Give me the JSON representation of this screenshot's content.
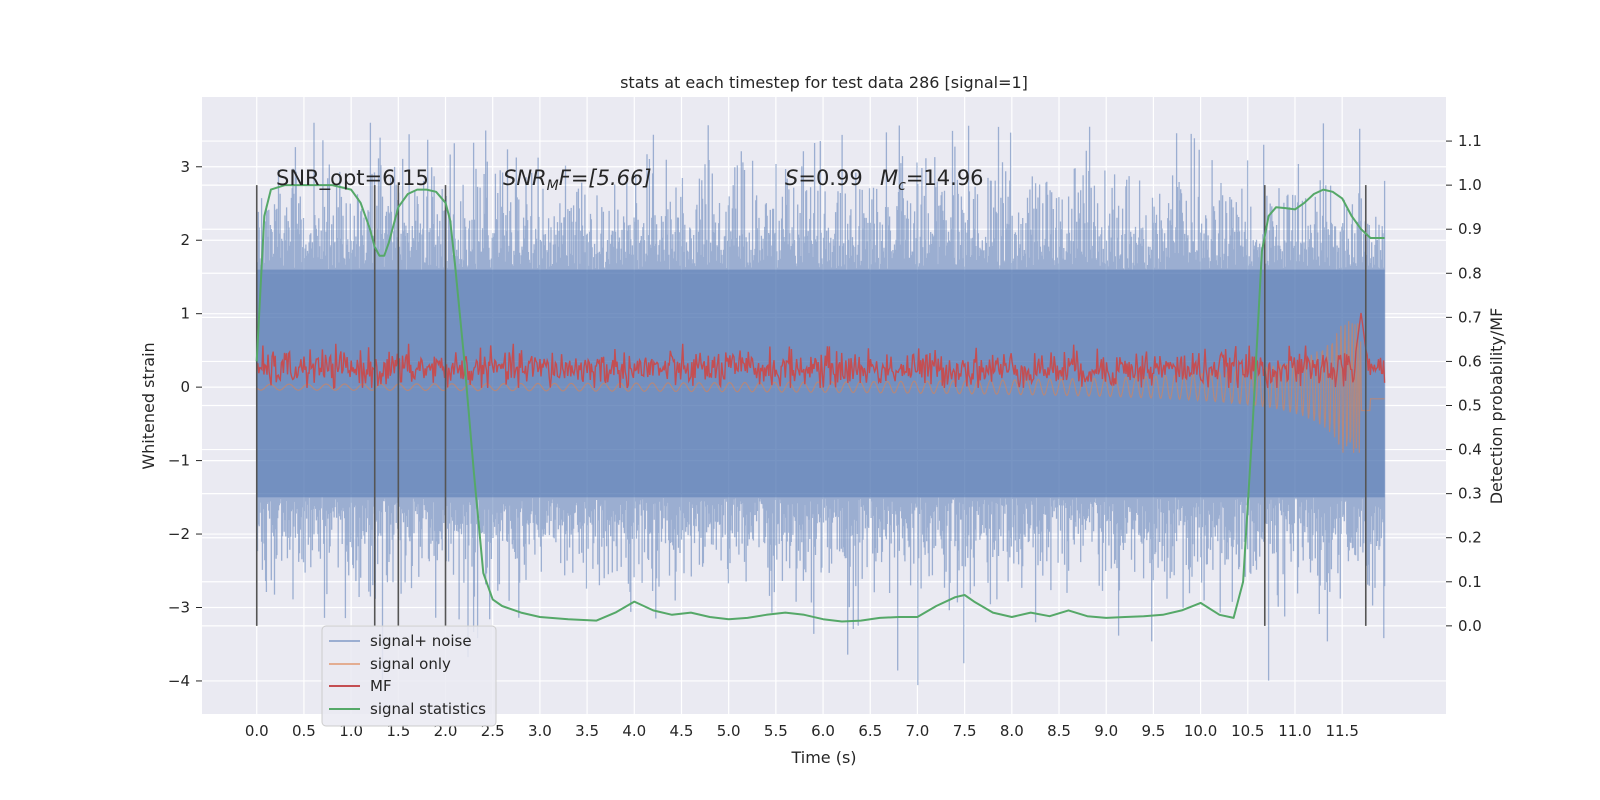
{
  "chart_data": {
    "type": "line",
    "title": "stats at each timestep for test data 286 [signal=1]",
    "xlabel": "Time (s)",
    "ylabel": "Whitened strain",
    "y2label": "Detection probability/MF",
    "xlim": [
      -0.58,
      12.6
    ],
    "ylim": [
      -4.45,
      3.95
    ],
    "y2lim": [
      -0.2,
      1.2
    ],
    "x_ticks": [
      "0.0",
      "0.5",
      "1.0",
      "1.5",
      "2.0",
      "2.5",
      "3.0",
      "3.5",
      "4.0",
      "4.5",
      "5.0",
      "5.5",
      "6.0",
      "6.5",
      "7.0",
      "7.5",
      "8.0",
      "8.5",
      "9.0",
      "9.5",
      "10.0",
      "10.5",
      "11.0",
      "11.5"
    ],
    "y_ticks": [
      "3",
      "2",
      "1",
      "0",
      "−1",
      "−2",
      "−3",
      "−4"
    ],
    "y2_ticks": [
      "1.1",
      "1.0",
      "0.9",
      "0.8",
      "0.7",
      "0.6",
      "0.5",
      "0.4",
      "0.3",
      "0.2",
      "0.1",
      "0.0"
    ],
    "grid": true,
    "legend_position": "lower-left",
    "annotations": {
      "snr_opt": "SNR_opt=6.15",
      "snr_mf_symbol": "SNR",
      "snr_mf_sub": "M",
      "snr_mf_tail": "F=[5.66]",
      "s_symbol": "S",
      "s_value": "=0.99",
      "mc_symbol": "M",
      "mc_sub": "c",
      "mc_value": "=14.96"
    },
    "vertical_markers_s": [
      0.0,
      1.25,
      1.5,
      2.0,
      10.68,
      11.75
    ],
    "series": [
      {
        "name": "signal+ noise",
        "color": "#4c72b0",
        "axis": "left",
        "t_range": [
          0.0,
          11.95
        ],
        "envelope": {
          "p_hi": 1.6,
          "p_lo": -1.5,
          "max": 3.6,
          "min": -4.1
        }
      },
      {
        "name": "signal only",
        "color": "#dd8452",
        "axis": "left",
        "t_range": [
          0.0,
          11.95
        ],
        "envelope": {
          "amp_start": 0.04,
          "amp_end": 0.9,
          "peak_t": 11.7
        }
      },
      {
        "name": "MF",
        "color": "#c44e52",
        "axis": "right",
        "t_range": [
          0.0,
          11.95
        ],
        "level_range": [
          0.545,
          0.63
        ],
        "spike": {
          "t": 11.7,
          "value": 0.71
        }
      },
      {
        "name": "signal statistics",
        "color": "#55a868",
        "axis": "right",
        "x": [
          0.0,
          0.08,
          0.15,
          0.3,
          0.5,
          0.8,
          1.0,
          1.1,
          1.2,
          1.25,
          1.3,
          1.35,
          1.4,
          1.5,
          1.6,
          1.7,
          1.8,
          1.9,
          2.0,
          2.05,
          2.1,
          2.2,
          2.3,
          2.4,
          2.5,
          2.6,
          2.8,
          3.0,
          3.3,
          3.6,
          3.8,
          4.0,
          4.2,
          4.4,
          4.6,
          4.8,
          5.0,
          5.2,
          5.4,
          5.6,
          5.8,
          6.0,
          6.2,
          6.4,
          6.6,
          6.8,
          7.0,
          7.2,
          7.4,
          7.5,
          7.6,
          7.8,
          8.0,
          8.2,
          8.4,
          8.6,
          8.8,
          9.0,
          9.2,
          9.4,
          9.6,
          9.8,
          10.0,
          10.2,
          10.35,
          10.45,
          10.55,
          10.65,
          10.72,
          10.8,
          10.9,
          11.0,
          11.1,
          11.2,
          11.3,
          11.4,
          11.5,
          11.6,
          11.7,
          11.8,
          11.9,
          11.95
        ],
        "y": [
          0.6,
          0.93,
          0.99,
          1.0,
          1.0,
          1.0,
          0.99,
          0.96,
          0.9,
          0.86,
          0.84,
          0.84,
          0.87,
          0.95,
          0.98,
          0.99,
          0.99,
          0.985,
          0.96,
          0.92,
          0.82,
          0.6,
          0.35,
          0.12,
          0.06,
          0.045,
          0.03,
          0.02,
          0.015,
          0.012,
          0.03,
          0.055,
          0.035,
          0.025,
          0.03,
          0.02,
          0.015,
          0.018,
          0.025,
          0.03,
          0.025,
          0.015,
          0.01,
          0.012,
          0.018,
          0.02,
          0.02,
          0.045,
          0.065,
          0.07,
          0.055,
          0.03,
          0.02,
          0.03,
          0.022,
          0.035,
          0.022,
          0.018,
          0.02,
          0.022,
          0.025,
          0.035,
          0.052,
          0.025,
          0.018,
          0.1,
          0.45,
          0.85,
          0.93,
          0.95,
          0.948,
          0.945,
          0.96,
          0.98,
          0.99,
          0.985,
          0.97,
          0.93,
          0.9,
          0.88,
          0.88,
          0.88
        ]
      }
    ]
  }
}
